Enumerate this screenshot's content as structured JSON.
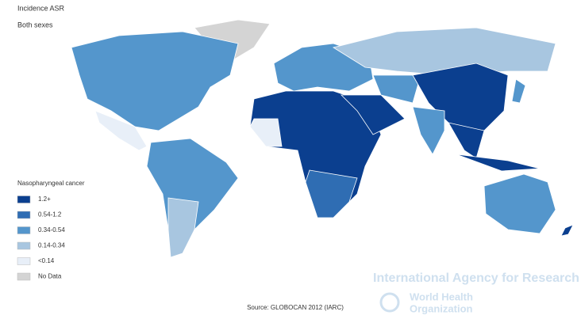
{
  "header": {
    "title": "Incidence ASR",
    "subtitle": "Both sexes"
  },
  "legend": {
    "title": "Nasopharyngeal cancer",
    "items": [
      {
        "label": "1.2+",
        "color": "#0b3f8f"
      },
      {
        "label": "0.54-1.2",
        "color": "#2f6db3"
      },
      {
        "label": "0.34-0.54",
        "color": "#5496cc"
      },
      {
        "label": "0.14-0.34",
        "color": "#a8c6e0"
      },
      {
        "label": "<0.14",
        "color": "#e8eff8"
      },
      {
        "label": "No Data",
        "color": "#d4d4d4"
      }
    ]
  },
  "footer": {
    "source": "Source: GLOBOCAN 2012 (IARC)",
    "watermark": "International Agency for Research on Cance",
    "who_line1": "World Health",
    "who_line2": "Organization"
  }
}
